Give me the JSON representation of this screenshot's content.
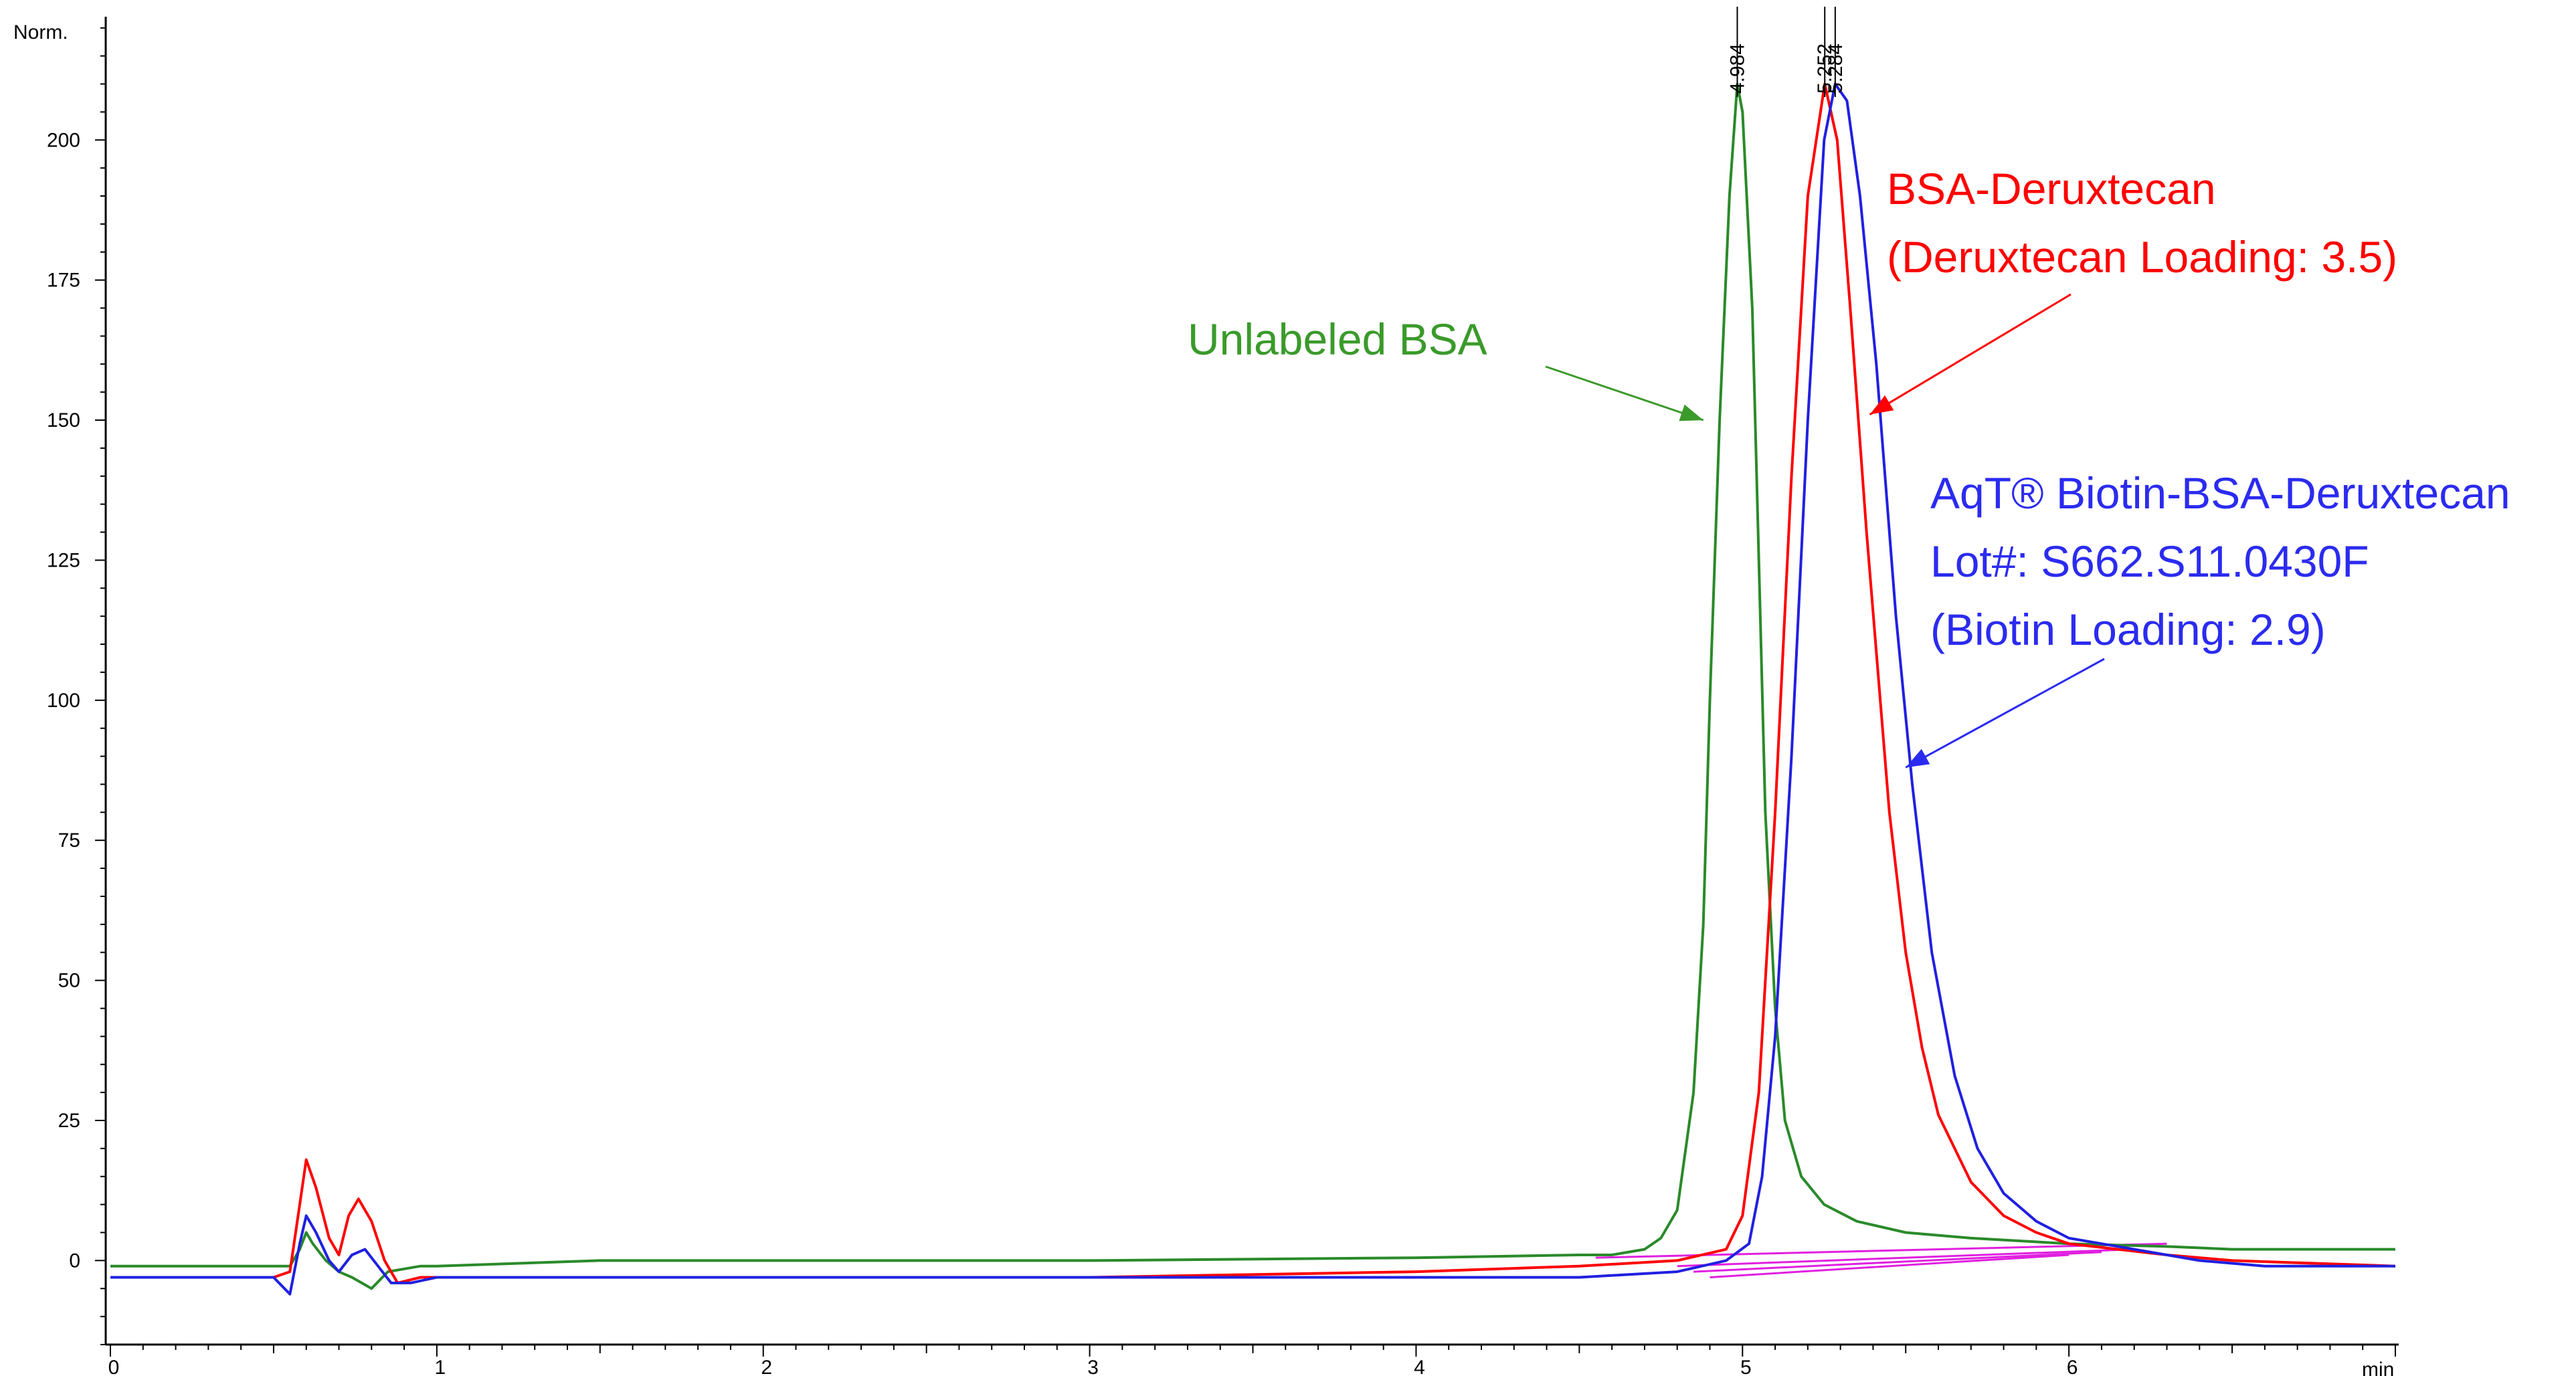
{
  "chart_data": {
    "type": "line",
    "ylabel": "Norm.",
    "xlabel": "min",
    "xlim": [
      0,
      7
    ],
    "ylim": [
      -15,
      222
    ],
    "x_ticks": [
      0,
      1,
      2,
      3,
      4,
      5,
      6
    ],
    "y_ticks": [
      0,
      25,
      50,
      75,
      100,
      125,
      150,
      175,
      200
    ],
    "grid": false,
    "peak_labels": [
      {
        "x": 4.984,
        "text": "4.984"
      },
      {
        "x": 5.252,
        "text": "5.252"
      },
      {
        "x": 5.284,
        "text": "5.284"
      }
    ],
    "annotations": [
      {
        "lines": [
          "Unlabeled BSA"
        ],
        "color": "#3a9a2a",
        "arrow_to": [
          4.88,
          150
        ]
      },
      {
        "lines": [
          "BSA-Deruxtecan",
          "(Deruxtecan Loading: 3.5)"
        ],
        "color": "#ff0000",
        "arrow_to": [
          5.39,
          151
        ]
      },
      {
        "lines": [
          "AqT® Biotin-BSA-Deruxtecan",
          "Lot#: S662.S11.0430F",
          "(Biotin Loading: 2.9)"
        ],
        "color": "#2b2bf0",
        "arrow_to": [
          5.5,
          88
        ]
      }
    ],
    "series": [
      {
        "color": "#2a8a2a",
        "points": [
          [
            0,
            -1
          ],
          [
            0.55,
            -1
          ],
          [
            0.58,
            2
          ],
          [
            0.6,
            5
          ],
          [
            0.62,
            3
          ],
          [
            0.66,
            0
          ],
          [
            0.7,
            -2
          ],
          [
            0.74,
            -3
          ],
          [
            0.8,
            -5
          ],
          [
            0.85,
            -2
          ],
          [
            0.95,
            -1
          ],
          [
            1.0,
            -1
          ],
          [
            1.5,
            0
          ],
          [
            2,
            0
          ],
          [
            3,
            0
          ],
          [
            4,
            0.5
          ],
          [
            4.5,
            1
          ],
          [
            4.6,
            1
          ],
          [
            4.7,
            2
          ],
          [
            4.75,
            4
          ],
          [
            4.8,
            9
          ],
          [
            4.85,
            30
          ],
          [
            4.88,
            60
          ],
          [
            4.9,
            100
          ],
          [
            4.93,
            150
          ],
          [
            4.96,
            190
          ],
          [
            4.984,
            210
          ],
          [
            5.0,
            205
          ],
          [
            5.03,
            170
          ],
          [
            5.05,
            125
          ],
          [
            5.07,
            80
          ],
          [
            5.1,
            45
          ],
          [
            5.13,
            25
          ],
          [
            5.18,
            15
          ],
          [
            5.25,
            10
          ],
          [
            5.35,
            7
          ],
          [
            5.5,
            5
          ],
          [
            5.7,
            4
          ],
          [
            6,
            3
          ],
          [
            6.3,
            2.5
          ],
          [
            6.5,
            2
          ],
          [
            7,
            2
          ]
        ]
      },
      {
        "color": "#ff0000",
        "points": [
          [
            0,
            -3
          ],
          [
            0.5,
            -3
          ],
          [
            0.55,
            -2
          ],
          [
            0.58,
            10
          ],
          [
            0.6,
            18
          ],
          [
            0.63,
            13
          ],
          [
            0.67,
            4
          ],
          [
            0.7,
            1
          ],
          [
            0.73,
            8
          ],
          [
            0.76,
            11
          ],
          [
            0.8,
            7
          ],
          [
            0.84,
            0
          ],
          [
            0.88,
            -4
          ],
          [
            0.95,
            -3
          ],
          [
            1.2,
            -3
          ],
          [
            2,
            -3
          ],
          [
            3,
            -3
          ],
          [
            4,
            -2
          ],
          [
            4.5,
            -1
          ],
          [
            4.8,
            0
          ],
          [
            4.95,
            2
          ],
          [
            5.0,
            8
          ],
          [
            5.05,
            30
          ],
          [
            5.1,
            80
          ],
          [
            5.15,
            140
          ],
          [
            5.2,
            190
          ],
          [
            5.252,
            210
          ],
          [
            5.29,
            200
          ],
          [
            5.33,
            170
          ],
          [
            5.38,
            130
          ],
          [
            5.45,
            80
          ],
          [
            5.5,
            55
          ],
          [
            5.55,
            38
          ],
          [
            5.6,
            26
          ],
          [
            5.7,
            14
          ],
          [
            5.8,
            8
          ],
          [
            5.9,
            5
          ],
          [
            6,
            3
          ],
          [
            6.3,
            1
          ],
          [
            6.5,
            0
          ],
          [
            7,
            -1
          ]
        ]
      },
      {
        "color": "#2020e0",
        "points": [
          [
            0,
            -3
          ],
          [
            0.5,
            -3
          ],
          [
            0.55,
            -6
          ],
          [
            0.58,
            3
          ],
          [
            0.6,
            8
          ],
          [
            0.63,
            5
          ],
          [
            0.67,
            0
          ],
          [
            0.7,
            -2
          ],
          [
            0.74,
            1
          ],
          [
            0.78,
            2
          ],
          [
            0.82,
            -1
          ],
          [
            0.86,
            -4
          ],
          [
            0.92,
            -4
          ],
          [
            1.0,
            -3
          ],
          [
            2,
            -3
          ],
          [
            3,
            -3
          ],
          [
            4,
            -3
          ],
          [
            4.5,
            -3
          ],
          [
            4.8,
            -2
          ],
          [
            4.95,
            0
          ],
          [
            5.02,
            3
          ],
          [
            5.06,
            15
          ],
          [
            5.1,
            40
          ],
          [
            5.15,
            90
          ],
          [
            5.2,
            150
          ],
          [
            5.25,
            200
          ],
          [
            5.284,
            210
          ],
          [
            5.32,
            207
          ],
          [
            5.36,
            190
          ],
          [
            5.41,
            160
          ],
          [
            5.47,
            115
          ],
          [
            5.52,
            85
          ],
          [
            5.58,
            55
          ],
          [
            5.65,
            33
          ],
          [
            5.72,
            20
          ],
          [
            5.8,
            12
          ],
          [
            5.9,
            7
          ],
          [
            6,
            4
          ],
          [
            6.2,
            2
          ],
          [
            6.4,
            0
          ],
          [
            6.6,
            -1
          ],
          [
            7,
            -1
          ]
        ]
      }
    ],
    "baselines": {
      "color": "#e020e0",
      "segments": [
        [
          [
            4.55,
            0.5
          ],
          [
            6.3,
            3
          ]
        ],
        [
          [
            4.8,
            -1
          ],
          [
            6.2,
            2
          ]
        ],
        [
          [
            4.85,
            -2
          ],
          [
            6.1,
            1.5
          ]
        ],
        [
          [
            4.9,
            -3
          ],
          [
            6.0,
            1
          ]
        ]
      ]
    }
  }
}
